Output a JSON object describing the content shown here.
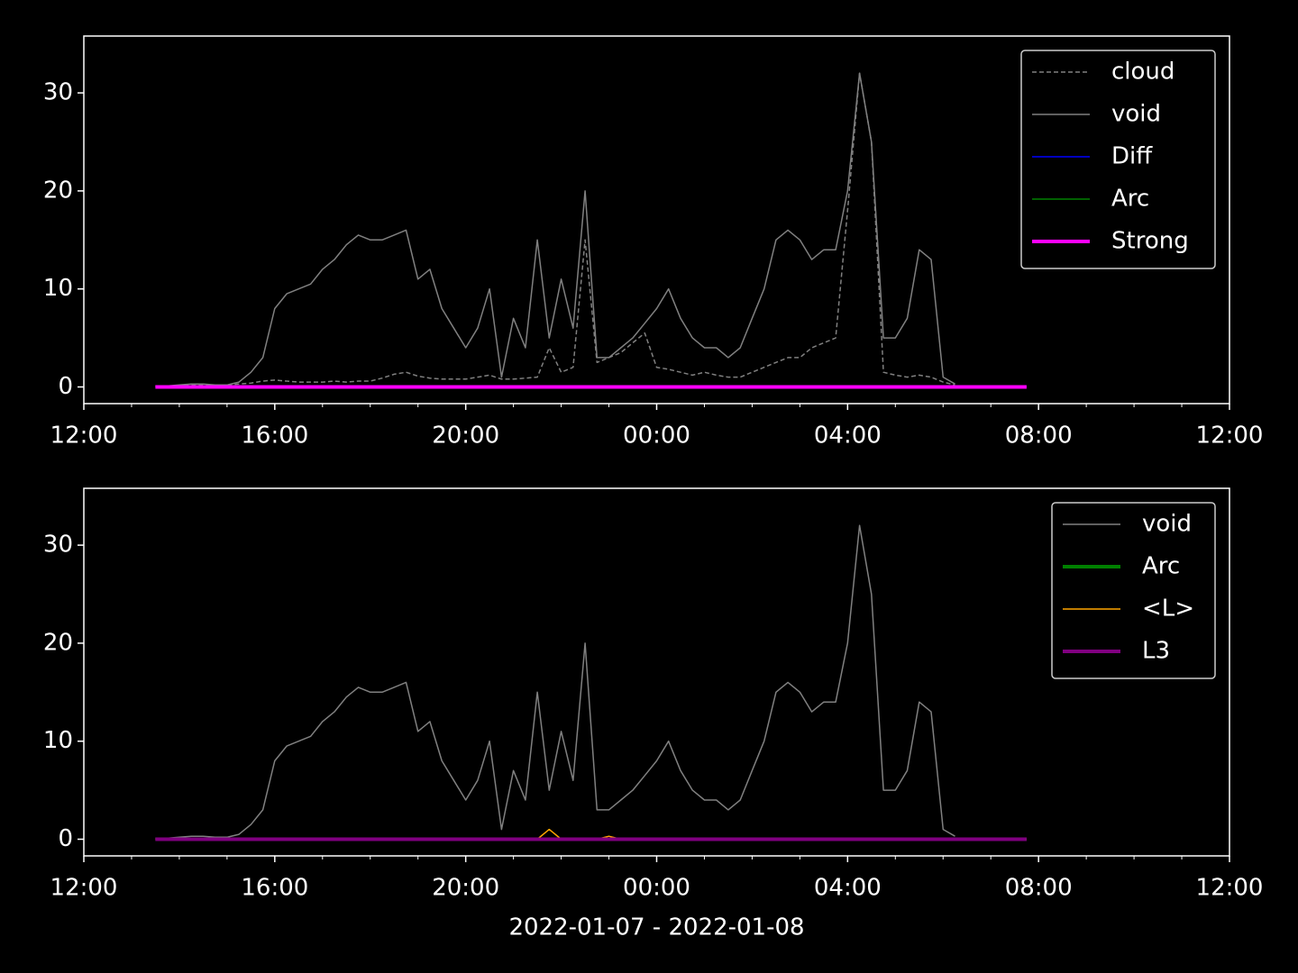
{
  "chart_data": [
    {
      "type": "line",
      "x": [
        13.5,
        13.75,
        14,
        14.25,
        14.5,
        14.75,
        15,
        15.25,
        15.5,
        15.75,
        16,
        16.25,
        16.5,
        16.75,
        17,
        17.25,
        17.5,
        17.75,
        18,
        18.25,
        18.5,
        18.75,
        19,
        19.25,
        19.5,
        19.75,
        20,
        20.25,
        20.5,
        20.75,
        21,
        21.25,
        21.5,
        21.75,
        22,
        22.25,
        22.5,
        22.75,
        23,
        23.25,
        23.5,
        23.75,
        24,
        24.25,
        24.5,
        24.75,
        25,
        25.25,
        25.5,
        25.75,
        26,
        26.25,
        26.5,
        26.75,
        27,
        27.25,
        27.5,
        27.75,
        28,
        28.25,
        28.5,
        28.75,
        29,
        29.25,
        29.5,
        29.75,
        30,
        30.25,
        30.5,
        30.75,
        31,
        31.25,
        31.5,
        31.75
      ],
      "xlim": [
        12,
        36
      ],
      "xticks": [
        {
          "value": 12,
          "label": "12:00"
        },
        {
          "value": 16,
          "label": "16:00"
        },
        {
          "value": 20,
          "label": "20:00"
        },
        {
          "value": 24,
          "label": "00:00"
        },
        {
          "value": 28,
          "label": "04:00"
        },
        {
          "value": 32,
          "label": "08:00"
        },
        {
          "value": 36,
          "label": "12:00"
        }
      ],
      "ylim": [
        -1.7,
        35.8
      ],
      "yticks": [
        0,
        10,
        20,
        30
      ],
      "legend": "upper right",
      "series": [
        {
          "name": "cloud",
          "color": "#808080",
          "linestyle": "dashed",
          "linewidth": 1.5,
          "values": [
            0.1,
            0.1,
            0.1,
            0.2,
            0.2,
            0.2,
            0.2,
            0.3,
            0.4,
            0.6,
            0.7,
            0.6,
            0.5,
            0.5,
            0.5,
            0.6,
            0.5,
            0.6,
            0.6,
            0.9,
            1.3,
            1.5,
            1.1,
            0.9,
            0.8,
            0.8,
            0.8,
            1.0,
            1.2,
            0.8,
            0.8,
            0.9,
            1.0,
            4,
            1.5,
            2,
            15,
            2.5,
            3,
            3.5,
            4.5,
            5.5,
            2,
            1.8,
            1.5,
            1.2,
            1.5,
            1.2,
            1.0,
            1.0,
            1.5,
            2,
            2.5,
            3,
            3,
            4,
            4.5,
            5,
            18,
            32,
            25,
            1.5,
            1.2,
            1.0,
            1.2,
            1.0,
            0.5,
            0.2,
            null,
            null,
            null,
            null,
            null,
            null
          ]
        },
        {
          "name": "void",
          "color": "#808080",
          "linewidth": 1.5,
          "values": [
            0.1,
            0.1,
            0.2,
            0.3,
            0.3,
            0.2,
            0.2,
            0.5,
            1.5,
            3,
            8,
            9.5,
            10,
            10.5,
            12,
            13,
            14.5,
            15.5,
            15,
            15,
            15.5,
            16,
            11,
            12,
            8,
            6,
            4,
            6,
            10,
            1,
            7,
            4,
            15,
            5,
            11,
            6,
            20,
            3,
            3,
            4,
            5,
            6.5,
            8,
            10,
            7,
            5,
            4,
            4,
            3,
            4,
            7,
            10,
            15,
            16,
            15,
            13,
            14,
            14,
            20,
            32,
            25,
            5,
            5,
            7,
            14,
            13,
            1,
            0.3,
            null,
            null,
            null,
            null,
            null,
            null
          ]
        },
        {
          "name": "Diff",
          "color": "#0000ff",
          "linewidth": 1.5,
          "values": [
            0,
            0,
            0,
            0,
            0,
            0,
            0,
            0,
            0,
            0,
            0,
            0,
            0,
            0,
            0,
            0,
            0,
            0,
            0,
            0,
            0,
            0,
            0,
            0,
            0,
            0,
            0,
            0,
            0,
            0,
            0,
            0,
            0,
            0,
            0,
            0,
            0,
            0,
            0,
            0,
            0,
            0,
            0,
            0,
            0,
            0,
            0,
            0,
            0,
            0,
            0,
            0,
            0,
            0,
            0,
            0,
            0,
            0,
            0,
            0,
            0,
            0,
            0,
            0,
            0,
            0,
            0,
            0,
            0,
            0,
            0,
            0,
            0,
            0
          ]
        },
        {
          "name": "Arc",
          "color": "#008000",
          "linewidth": 1.5,
          "values": [
            0,
            0,
            0,
            0,
            0,
            0,
            0,
            0,
            0,
            0,
            0,
            0,
            0,
            0,
            0,
            0,
            0,
            0,
            0,
            0,
            0,
            0,
            0,
            0,
            0,
            0,
            0,
            0,
            0,
            0,
            0,
            0,
            0,
            0,
            0,
            0,
            0,
            0,
            0,
            0,
            0,
            0,
            0,
            0,
            0,
            0,
            0,
            0,
            0,
            0,
            0,
            0,
            0,
            0,
            0,
            0,
            0,
            0,
            0,
            0,
            0,
            0,
            0,
            0,
            0,
            0,
            0,
            0,
            0,
            0,
            0,
            0,
            0,
            0
          ]
        },
        {
          "name": "Strong",
          "color": "#ff00ff",
          "linewidth": 4,
          "values": [
            0,
            0,
            0,
            0,
            0,
            0,
            0,
            0,
            0,
            0,
            0,
            0,
            0,
            0,
            0,
            0,
            0,
            0,
            0,
            0,
            0,
            0,
            0,
            0,
            0,
            0,
            0,
            0,
            0,
            0,
            0,
            0,
            0,
            0,
            0,
            0,
            0,
            0,
            0,
            0,
            0,
            0,
            0,
            0,
            0,
            0,
            0,
            0,
            0,
            0,
            0,
            0,
            0,
            0,
            0,
            0,
            0,
            0,
            0,
            0,
            0,
            0,
            0,
            0,
            0,
            0,
            0,
            0,
            0,
            0,
            0,
            0,
            0,
            0
          ]
        }
      ]
    },
    {
      "type": "line",
      "x": [
        13.5,
        13.75,
        14,
        14.25,
        14.5,
        14.75,
        15,
        15.25,
        15.5,
        15.75,
        16,
        16.25,
        16.5,
        16.75,
        17,
        17.25,
        17.5,
        17.75,
        18,
        18.25,
        18.5,
        18.75,
        19,
        19.25,
        19.5,
        19.75,
        20,
        20.25,
        20.5,
        20.75,
        21,
        21.25,
        21.5,
        21.75,
        22,
        22.25,
        22.5,
        22.75,
        23,
        23.25,
        23.5,
        23.75,
        24,
        24.25,
        24.5,
        24.75,
        25,
        25.25,
        25.5,
        25.75,
        26,
        26.25,
        26.5,
        26.75,
        27,
        27.25,
        27.5,
        27.75,
        28,
        28.25,
        28.5,
        28.75,
        29,
        29.25,
        29.5,
        29.75,
        30,
        30.25,
        30.5,
        30.75,
        31,
        31.25,
        31.5,
        31.75
      ],
      "xlim": [
        12,
        36
      ],
      "xticks": [
        {
          "value": 12,
          "label": "12:00"
        },
        {
          "value": 16,
          "label": "16:00"
        },
        {
          "value": 20,
          "label": "20:00"
        },
        {
          "value": 24,
          "label": "00:00"
        },
        {
          "value": 28,
          "label": "04:00"
        },
        {
          "value": 32,
          "label": "08:00"
        },
        {
          "value": 36,
          "label": "12:00"
        }
      ],
      "xlabel": "2022-01-07 - 2022-01-08",
      "ylim": [
        -1.7,
        35.8
      ],
      "yticks": [
        0,
        10,
        20,
        30
      ],
      "legend": "upper right",
      "series": [
        {
          "name": "void",
          "color": "#808080",
          "linewidth": 1.5,
          "values": [
            0.1,
            0.1,
            0.2,
            0.3,
            0.3,
            0.2,
            0.2,
            0.5,
            1.5,
            3,
            8,
            9.5,
            10,
            10.5,
            12,
            13,
            14.5,
            15.5,
            15,
            15,
            15.5,
            16,
            11,
            12,
            8,
            6,
            4,
            6,
            10,
            1,
            7,
            4,
            15,
            5,
            11,
            6,
            20,
            3,
            3,
            4,
            5,
            6.5,
            8,
            10,
            7,
            5,
            4,
            4,
            3,
            4,
            7,
            10,
            15,
            16,
            15,
            13,
            14,
            14,
            20,
            32,
            25,
            5,
            5,
            7,
            14,
            13,
            1,
            0.3,
            null,
            null,
            null,
            null,
            null,
            null
          ]
        },
        {
          "name": "Arc",
          "color": "#008000",
          "linewidth": 4,
          "values": [
            0,
            0,
            0,
            0,
            0,
            0,
            0,
            0,
            0,
            0,
            0,
            0,
            0,
            0,
            0,
            0,
            0,
            0,
            0,
            0,
            0,
            0,
            0,
            0,
            0,
            0,
            0,
            0,
            0,
            0,
            0,
            0,
            0,
            0,
            0,
            0,
            0,
            0,
            0,
            0,
            0,
            0,
            0,
            0,
            0,
            0,
            0,
            0,
            0,
            0,
            0,
            0,
            0,
            0,
            0,
            0,
            0,
            0,
            0,
            0,
            0,
            0,
            0,
            0,
            0,
            0,
            0,
            0,
            0,
            0,
            0,
            0,
            0,
            0
          ]
        },
        {
          "name": "<L>",
          "color": "#ffa500",
          "linewidth": 1.5,
          "values": [
            0,
            0,
            0,
            0,
            0,
            0,
            0,
            0,
            0,
            0,
            0,
            0,
            0,
            0,
            0,
            0,
            0,
            0,
            0,
            0,
            0,
            0,
            0,
            0,
            0,
            0,
            0,
            0,
            0,
            0,
            0,
            0,
            0,
            1,
            0,
            0,
            0,
            0,
            0.3,
            0,
            0,
            0,
            0,
            0,
            0,
            0,
            0,
            0,
            0,
            0,
            0,
            0,
            0,
            0,
            0,
            0,
            0,
            0,
            0,
            0,
            0,
            0,
            0,
            0,
            0,
            0,
            0,
            0,
            0,
            0,
            0,
            0,
            0,
            0
          ]
        },
        {
          "name": "L3",
          "color": "#800080",
          "linewidth": 4,
          "values": [
            0,
            0,
            0,
            0,
            0,
            0,
            0,
            0,
            0,
            0,
            0,
            0,
            0,
            0,
            0,
            0,
            0,
            0,
            0,
            0,
            0,
            0,
            0,
            0,
            0,
            0,
            0,
            0,
            0,
            0,
            0,
            0,
            0,
            0,
            0,
            0,
            0,
            0,
            0,
            0,
            0,
            0,
            0,
            0,
            0,
            0,
            0,
            0,
            0,
            0,
            0,
            0,
            0,
            0,
            0,
            0,
            0,
            0,
            0,
            0,
            0,
            0,
            0,
            0,
            0,
            0,
            0,
            0,
            0,
            0,
            0,
            0,
            0,
            0
          ]
        }
      ]
    }
  ]
}
